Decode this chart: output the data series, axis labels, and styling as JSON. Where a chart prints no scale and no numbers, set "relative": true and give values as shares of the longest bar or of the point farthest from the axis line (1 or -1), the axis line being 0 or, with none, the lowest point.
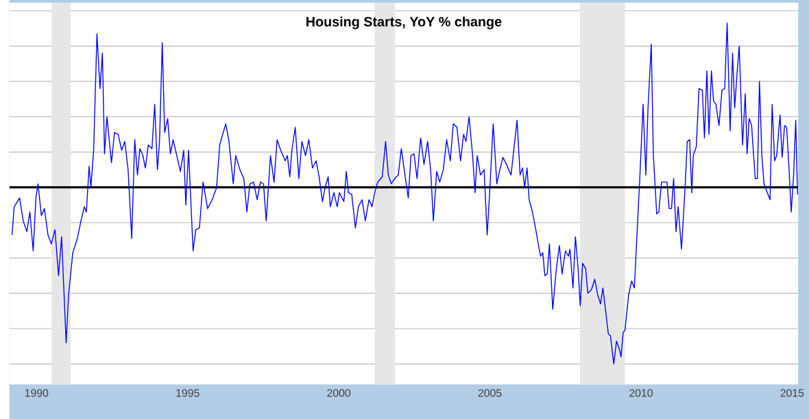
{
  "chart_data": {
    "type": "line",
    "title": "Housing Starts, YoY % change",
    "relative": true,
    "grid": "y",
    "xlim": [
      1989.1,
      2015.2
    ],
    "xticks": [
      1990,
      1995,
      2000,
      2005,
      2010,
      2015
    ],
    "bands": [
      {
        "axis": "x",
        "from": 1990.5,
        "to": 1991.13,
        "color": "#e6e6e6"
      },
      {
        "axis": "x",
        "from": 2001.19,
        "to": 2001.86,
        "color": "#e6e6e6"
      },
      {
        "axis": "x",
        "from": 2007.98,
        "to": 2009.47,
        "color": "#e6e6e6"
      }
    ],
    "ref_lines": [
      {
        "axis": "y",
        "value": 0,
        "color": "#000000"
      }
    ],
    "series": [
      {
        "color": "#0000ff",
        "x": [
          1989.19,
          1989.26,
          1989.44,
          1989.56,
          1989.68,
          1989.78,
          1989.89,
          1989.98,
          1990.05,
          1990.16,
          1990.26,
          1990.38,
          1990.49,
          1990.61,
          1990.73,
          1990.83,
          1990.98,
          1991.06,
          1991.2,
          1991.35,
          1991.47,
          1991.58,
          1991.65,
          1991.74,
          1991.8,
          1991.89,
          1992.0,
          1992.1,
          1992.18,
          1992.25,
          1992.33,
          1992.48,
          1992.58,
          1992.7,
          1992.82,
          1992.92,
          1993.03,
          1993.15,
          1993.25,
          1993.34,
          1993.42,
          1993.52,
          1993.6,
          1993.7,
          1993.82,
          1993.91,
          1994.0,
          1994.07,
          1994.16,
          1994.24,
          1994.34,
          1994.43,
          1994.52,
          1994.64,
          1994.76,
          1994.87,
          1994.94,
          1995.03,
          1995.18,
          1995.27,
          1995.39,
          1995.51,
          1995.66,
          1995.81,
          1995.96,
          1996.06,
          1996.26,
          1996.36,
          1996.51,
          1996.59,
          1996.73,
          1996.86,
          1996.96,
          1997.06,
          1997.18,
          1997.3,
          1997.41,
          1997.51,
          1997.6,
          1997.74,
          1997.86,
          1997.96,
          1998.08,
          1998.23,
          1998.3,
          1998.38,
          1998.45,
          1998.56,
          1998.68,
          1998.78,
          1998.9,
          1999.01,
          1999.13,
          1999.25,
          1999.35,
          1999.46,
          1999.55,
          1999.65,
          1999.72,
          1999.84,
          1999.95,
          2000.02,
          2000.17,
          2000.25,
          2000.32,
          2000.43,
          2000.55,
          2000.65,
          2000.77,
          2000.88,
          2001.0,
          2001.1,
          2001.19,
          2001.29,
          2001.44,
          2001.55,
          2001.64,
          2001.74,
          2001.85,
          2001.97,
          2002.07,
          2002.19,
          2002.3,
          2002.39,
          2002.49,
          2002.59,
          2002.71,
          2002.82,
          2002.94,
          2003.04,
          2003.13,
          2003.24,
          2003.34,
          2003.46,
          2003.57,
          2003.69,
          2003.79,
          2003.91,
          2004.03,
          2004.13,
          2004.21,
          2004.31,
          2004.43,
          2004.51,
          2004.58,
          2004.69,
          2004.81,
          2004.91,
          2004.99,
          2005.11,
          2005.23,
          2005.33,
          2005.43,
          2005.55,
          2005.7,
          2005.81,
          2005.9,
          2006.0,
          2006.08,
          2006.15,
          2006.23,
          2006.3,
          2006.41,
          2006.53,
          2006.6,
          2006.68,
          2006.75,
          2006.82,
          2006.9,
          2006.97,
          2007.08,
          2007.2,
          2007.3,
          2007.39,
          2007.5,
          2007.6,
          2007.65,
          2007.75,
          2007.83,
          2007.92,
          2007.99,
          2008.07,
          2008.17,
          2008.24,
          2008.36,
          2008.47,
          2008.57,
          2008.66,
          2008.74,
          2008.81,
          2008.92,
          2008.99,
          2009.1,
          2009.19,
          2009.29,
          2009.34,
          2009.41,
          2009.47,
          2009.59,
          2009.69,
          2009.78,
          2009.89,
          2009.96,
          2010.07,
          2010.16,
          2010.23,
          2010.34,
          2010.41,
          2010.52,
          2010.59,
          2010.68,
          2010.79,
          2010.86,
          2010.93,
          2011.01,
          2011.08,
          2011.16,
          2011.23,
          2011.34,
          2011.46,
          2011.53,
          2011.61,
          2011.68,
          2011.73,
          2011.83,
          2011.92,
          2012.03,
          2012.1,
          2012.18,
          2012.25,
          2012.33,
          2012.4,
          2012.48,
          2012.58,
          2012.68,
          2012.77,
          2012.85,
          2012.95,
          2013.03,
          2013.1,
          2013.18,
          2013.25,
          2013.36,
          2013.45,
          2013.51,
          2013.58,
          2013.66,
          2013.78,
          2013.85,
          2013.92,
          2014.0,
          2014.07,
          2014.18,
          2014.27,
          2014.34,
          2014.42,
          2014.49,
          2014.6,
          2014.67,
          2014.75,
          2014.82,
          2014.9,
          2014.97,
          2015.05,
          2015.12,
          2015.18
        ],
        "values": [
          -0.27,
          -0.11,
          -0.06,
          -0.19,
          -0.25,
          -0.14,
          -0.36,
          -0.06,
          0.02,
          -0.16,
          -0.12,
          -0.27,
          -0.32,
          -0.24,
          -0.5,
          -0.28,
          -0.88,
          -0.61,
          -0.37,
          -0.29,
          -0.19,
          -0.11,
          -0.14,
          0.12,
          0.0,
          0.21,
          0.87,
          0.56,
          0.76,
          0.19,
          0.4,
          0.14,
          0.31,
          0.3,
          0.21,
          0.26,
          0.1,
          -0.29,
          0.27,
          0.07,
          0.22,
          0.18,
          0.11,
          0.24,
          0.22,
          0.47,
          0.1,
          0.26,
          0.82,
          0.31,
          0.39,
          0.19,
          0.27,
          0.18,
          0.09,
          0.21,
          -0.1,
          0.21,
          -0.36,
          -0.24,
          -0.23,
          0.03,
          -0.12,
          -0.07,
          0.0,
          0.24,
          0.36,
          0.27,
          0.02,
          0.18,
          0.1,
          0.05,
          -0.14,
          0.02,
          0.03,
          -0.07,
          0.03,
          0.02,
          -0.19,
          0.18,
          0.03,
          0.27,
          0.21,
          0.15,
          0.18,
          0.06,
          0.21,
          0.34,
          0.05,
          0.26,
          0.18,
          0.27,
          0.11,
          0.15,
          0.06,
          -0.08,
          0.0,
          0.06,
          -0.11,
          -0.03,
          -0.11,
          -0.03,
          -0.08,
          0.09,
          -0.03,
          -0.04,
          -0.23,
          -0.11,
          -0.07,
          -0.19,
          -0.07,
          -0.11,
          -0.03,
          0.03,
          0.06,
          0.26,
          0.07,
          0.02,
          0.05,
          0.07,
          0.22,
          0.07,
          -0.06,
          0.18,
          0.19,
          0.05,
          0.28,
          0.13,
          0.26,
          0.1,
          -0.19,
          0.09,
          0.03,
          0.1,
          0.27,
          0.15,
          0.36,
          0.34,
          0.15,
          0.3,
          0.26,
          0.4,
          0.18,
          -0.03,
          0.18,
          0.07,
          0.1,
          -0.27,
          -0.04,
          0.36,
          0.02,
          0.1,
          0.17,
          0.13,
          0.07,
          0.24,
          0.38,
          0.07,
          0.11,
          0.0,
          0.11,
          -0.07,
          -0.14,
          -0.25,
          -0.32,
          -0.39,
          -0.37,
          -0.5,
          -0.49,
          -0.32,
          -0.69,
          -0.46,
          -0.33,
          -0.49,
          -0.36,
          -0.39,
          -0.35,
          -0.57,
          -0.28,
          -0.46,
          -0.67,
          -0.43,
          -0.46,
          -0.6,
          -0.58,
          -0.52,
          -0.61,
          -0.66,
          -0.57,
          -0.67,
          -0.83,
          -0.84,
          -1.0,
          -0.87,
          -0.92,
          -0.96,
          -0.82,
          -0.81,
          -0.61,
          -0.53,
          -0.57,
          -0.19,
          0.05,
          0.47,
          0.07,
          0.44,
          0.81,
          0.18,
          -0.15,
          -0.14,
          0.03,
          0.03,
          0.03,
          -0.12,
          -0.12,
          0.05,
          -0.25,
          -0.11,
          -0.35,
          0.0,
          0.26,
          0.27,
          -0.03,
          0.18,
          0.23,
          0.56,
          0.55,
          0.28,
          0.66,
          0.3,
          0.66,
          0.49,
          0.47,
          0.35,
          0.55,
          0.56,
          0.93,
          0.32,
          0.76,
          0.45,
          0.65,
          0.8,
          0.24,
          0.53,
          0.19,
          0.39,
          0.35,
          0.05,
          0.05,
          0.6,
          0.18,
          0.02,
          -0.03,
          -0.07,
          0.47,
          0.15,
          0.18,
          0.41,
          0.17,
          0.35,
          0.34,
          0.1,
          -0.14,
          0.07,
          0.38,
          -0.04
        ]
      }
    ]
  }
}
